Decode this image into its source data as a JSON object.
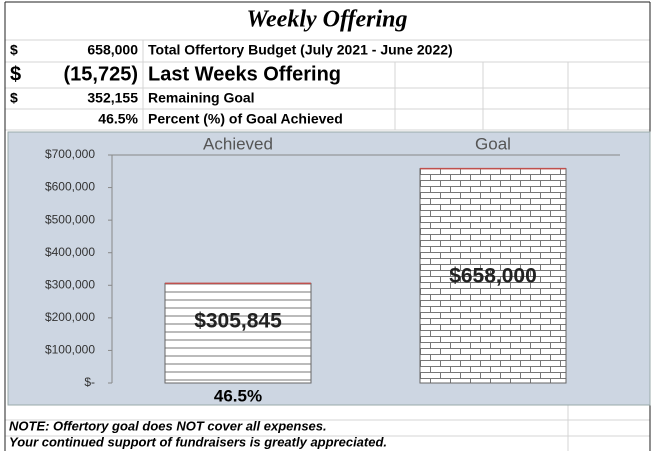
{
  "title": "Weekly Offering",
  "table": {
    "rows": [
      {
        "currency": "$",
        "amount": "658,000",
        "label": "Total Offertory Budget (July 2021 - June 2022)"
      },
      {
        "currency": "$",
        "amount": "(15,725)",
        "label": "Last Weeks Offering"
      },
      {
        "currency": "$",
        "amount": "352,155",
        "label": "Remaining Goal"
      },
      {
        "amount": "46.5%",
        "label": "Percent (%) of Goal Achieved"
      }
    ]
  },
  "chart_data": {
    "type": "bar",
    "categories": [
      "Achieved",
      "Goal"
    ],
    "values": [
      305845,
      658000
    ],
    "value_labels": [
      "$305,845",
      "$658,000"
    ],
    "annotation": "46.5%",
    "ylim": [
      0,
      700000
    ],
    "yticks": [
      {
        "value": 0,
        "label": "$-"
      },
      {
        "value": 100000,
        "label": "$100,000"
      },
      {
        "value": 200000,
        "label": "$200,000"
      },
      {
        "value": 300000,
        "label": "$300,000"
      },
      {
        "value": 400000,
        "label": "$400,000"
      },
      {
        "value": 500000,
        "label": "$500,000"
      },
      {
        "value": 600000,
        "label": "$600,000"
      },
      {
        "value": 700000,
        "label": "$700,000"
      }
    ]
  },
  "notes": [
    "NOTE: Offertory goal does NOT cover all expenses.",
    "Your continued support of fundraisers is greatly appreciated."
  ]
}
